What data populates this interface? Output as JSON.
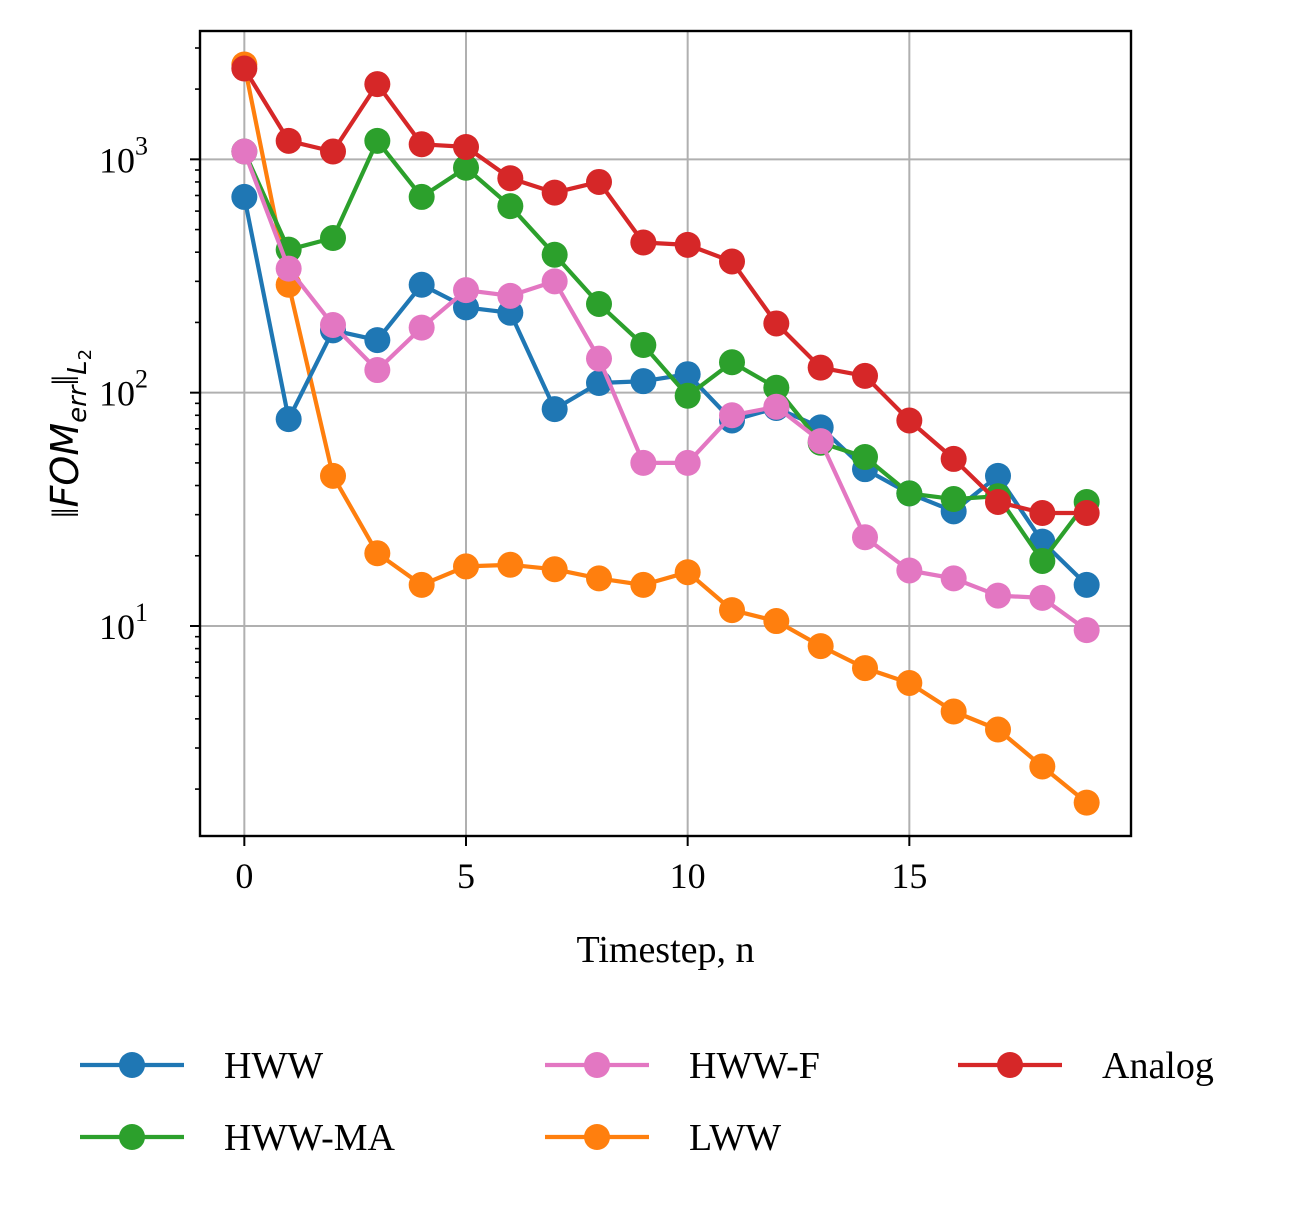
{
  "chart_data": {
    "type": "line",
    "title": "",
    "xlabel": "Timestep, n",
    "ylabel": "‖FOM_err‖_L2",
    "ylabel_parts": {
      "norm_open": "‖",
      "main": "FOM",
      "sub": "err",
      "norm_close": "‖",
      "norm_sub": "L",
      "norm_sub2": "2"
    },
    "xlim": [
      -1,
      20
    ],
    "ylim_log10": [
      0.1,
      3.55
    ],
    "yscale": "log",
    "grid": true,
    "legend_position": "bottom-outside",
    "x_ticks": [
      0,
      5,
      10,
      15
    ],
    "x_tick_labels": [
      "0",
      "5",
      "10",
      "15"
    ],
    "y_ticks": [
      {
        "base": "10",
        "exp": "1",
        "value": 10
      },
      {
        "base": "10",
        "exp": "2",
        "value": 100
      },
      {
        "base": "10",
        "exp": "3",
        "value": 1000
      }
    ],
    "x": [
      0,
      1,
      2,
      3,
      4,
      5,
      6,
      7,
      8,
      9,
      10,
      11,
      12,
      13,
      14,
      15,
      16,
      17,
      18,
      19
    ],
    "series": [
      {
        "name": "HWW",
        "color": "#1f77b4",
        "values": [
          690,
          77,
          185,
          168,
          290,
          232,
          220,
          85,
          110,
          112,
          120,
          76,
          86,
          71,
          47,
          37,
          31,
          44,
          23,
          15
        ]
      },
      {
        "name": "HWW-MA",
        "color": "#2ca02c",
        "values": [
          1080,
          410,
          460,
          1200,
          690,
          920,
          630,
          390,
          240,
          160,
          97,
          135,
          105,
          61,
          53,
          37,
          35,
          36,
          19,
          34
        ]
      },
      {
        "name": "LWW",
        "color": "#ff7f0e",
        "values": [
          2550,
          290,
          44,
          20.5,
          15,
          18,
          18.3,
          17.5,
          16,
          15,
          17,
          11.7,
          10.5,
          8.2,
          6.6,
          5.7,
          4.3,
          3.6,
          2.5,
          1.75
        ]
      },
      {
        "name": "HWW-F",
        "color": "#e377c2",
        "values": [
          1080,
          340,
          195,
          125,
          190,
          275,
          260,
          300,
          140,
          50,
          50,
          80,
          87,
          62,
          24,
          17.3,
          16,
          13.5,
          13.2,
          9.6
        ]
      },
      {
        "name": "Analog",
        "color": "#d62728",
        "values": [
          2450,
          1200,
          1080,
          2100,
          1160,
          1130,
          830,
          720,
          800,
          440,
          430,
          365,
          198,
          128,
          118,
          76,
          52,
          34,
          30.5,
          30.5
        ]
      }
    ],
    "legend": [
      {
        "label": "HWW",
        "color": "#1f77b4"
      },
      {
        "label": "HWW-F",
        "color": "#e377c2"
      },
      {
        "label": "Analog",
        "color": "#d62728"
      },
      {
        "label": "HWW-MA",
        "color": "#2ca02c"
      },
      {
        "label": "LWW",
        "color": "#ff7f0e"
      }
    ],
    "draw_order": [
      "LWW",
      "HWW",
      "HWW-MA",
      "HWW-F",
      "Analog"
    ]
  }
}
